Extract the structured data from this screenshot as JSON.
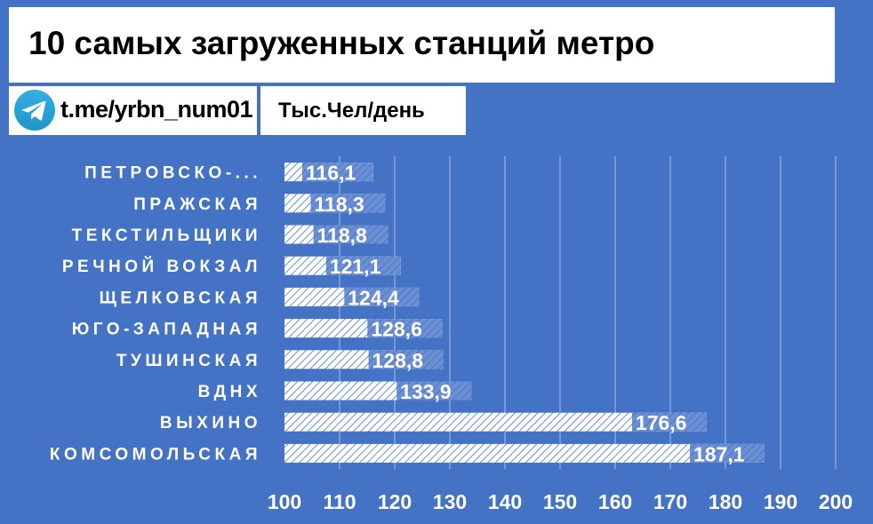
{
  "header": {
    "title": "10 самых загруженных станций метро",
    "telegram": "t.me/yrbn_num01",
    "unit": "Тыс.Чел/день"
  },
  "colors": {
    "background": "#4472c4",
    "bar": "#ffffff",
    "text": "#ffffff"
  },
  "chart_data": {
    "type": "bar",
    "orientation": "horizontal",
    "categories": [
      "ПЕТРОВСКО-...",
      "ПРАЖСКАЯ",
      "ТЕКСТИЛЬЩИКИ",
      "РЕЧНОЙ ВОКЗАЛ",
      "ЩЕЛКОВСКАЯ",
      "ЮГО-ЗАПАДНАЯ",
      "ТУШИНСКАЯ",
      "ВДНХ",
      "ВЫХИНО",
      "КОМСОМОЛЬСКАЯ"
    ],
    "values": [
      116.1,
      118.3,
      118.8,
      121.1,
      124.4,
      128.6,
      128.8,
      133.9,
      176.6,
      187.1
    ],
    "value_labels": [
      "116,1",
      "118,3",
      "118,8",
      "121,1",
      "124,4",
      "128,6",
      "128,8",
      "133,9",
      "176,6",
      "187,1"
    ],
    "xlim": [
      100,
      200
    ],
    "xticks": [
      100,
      110,
      120,
      130,
      140,
      150,
      160,
      170,
      180,
      190,
      200
    ],
    "grid": true
  }
}
